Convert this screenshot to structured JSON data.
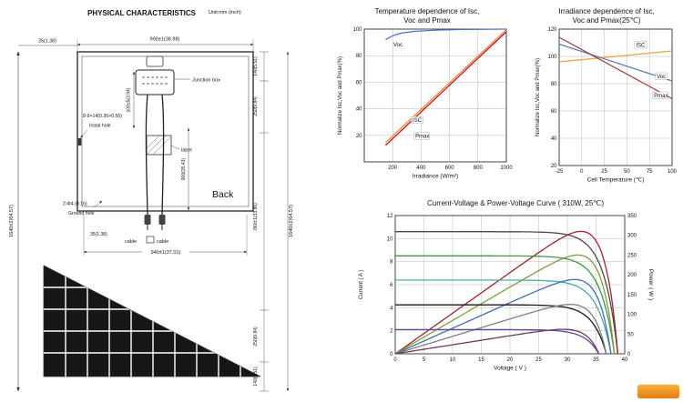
{
  "page": {
    "bg": "#ffffff"
  },
  "drawing": {
    "title": "PHYSICAL CHARACTERISTICS",
    "unit_label": "Unit:mm (inch)",
    "dims": {
      "top_width": "990±1(38.98)",
      "top_left_offset": "35(1.38)",
      "top_right": "140(5.51)",
      "left_height": "1640±2(64.57)",
      "right_height": "1640±2(64.57)",
      "right_upper": "250(9.84)",
      "right_mid": "860±1(33.86)",
      "jbox": "100±5(3.94)",
      "label_pos": "900(35.43)",
      "bottom_offset": "35(1.38)",
      "bottom_width": "940±1(37.01)",
      "wedge_upper": "250(9.84)",
      "wedge_lower": "140(5.51)"
    },
    "notes": {
      "junction_box": "Junction box",
      "instal_hole_size": "8-9×14(0.35×0.55)",
      "instal_hole": "Instal hole",
      "label": "label",
      "back": "Back",
      "ground_hole_size": "2-Φ4 (0.16)",
      "ground_hole": "Ground hole",
      "cable_left": "cable",
      "cable_right": "cable"
    }
  },
  "chart_data": [
    {
      "type": "line",
      "title_line1": "Temperature dependence of Isc,",
      "title_line2": "Voc and Pmax",
      "xlabel": "Irradiance (W/m²)",
      "ylabel": "Normalize Isc,Voc and Pmax(%)",
      "xlim": [
        0,
        1000
      ],
      "ylim": [
        0,
        100
      ],
      "xticks": [
        200,
        400,
        600,
        800,
        1000
      ],
      "yticks": [
        20,
        40,
        60,
        80,
        100
      ],
      "grid": true,
      "series": [
        {
          "name": "Voc",
          "color": "#4472c4",
          "points": [
            [
              150,
              92
            ],
            [
              200,
              95
            ],
            [
              260,
              97
            ],
            [
              350,
              98.3
            ],
            [
              500,
              99.2
            ],
            [
              700,
              99.7
            ],
            [
              1000,
              100
            ]
          ]
        },
        {
          "name": "ISC",
          "color": "#ed7d31",
          "points": [
            [
              150,
              14.5
            ],
            [
              1000,
              99.5
            ]
          ]
        },
        {
          "name": "Pmax",
          "color": "#c00000",
          "points": [
            [
              150,
              12.5
            ],
            [
              1000,
              98
            ]
          ]
        }
      ],
      "annotations": [
        {
          "text": "Voc",
          "x": 205,
          "y": 87,
          "box": false
        },
        {
          "text": "ISC",
          "x": 340,
          "y": 30,
          "box": true
        },
        {
          "text": "Pmax",
          "x": 360,
          "y": 18,
          "box": true
        }
      ]
    },
    {
      "type": "line",
      "title_line1": "Irradiance dependence of Isc,",
      "title_line2": "Voc and Pmax(25℃)",
      "xlabel": "Cell Temperature (℃)",
      "ylabel": "Normalize Isc,Voc and Pmax(%)",
      "xlim": [
        -25,
        100
      ],
      "ylim": [
        20,
        120
      ],
      "xticks": [
        -25,
        0,
        25,
        50,
        75,
        100
      ],
      "yticks": [
        20,
        40,
        60,
        80,
        100,
        120
      ],
      "grid": true,
      "series": [
        {
          "name": "ISC",
          "color": "#e6a23c",
          "points": [
            [
              -25,
              96
            ],
            [
              100,
              104
            ]
          ]
        },
        {
          "name": "Voc",
          "color": "#5b7bb4",
          "points": [
            [
              -25,
              109
            ],
            [
              100,
              82
            ]
          ]
        },
        {
          "name": "Pmax",
          "color": "#9e3a3a",
          "points": [
            [
              -25,
              114
            ],
            [
              100,
              69
            ]
          ]
        }
      ],
      "annotations": [
        {
          "text": "ISC",
          "x": 60,
          "y": 107,
          "box": true
        },
        {
          "text": "Voc",
          "x": 83,
          "y": 84,
          "box": true
        },
        {
          "text": "Pmax",
          "x": 80,
          "y": 70,
          "box": true
        }
      ]
    },
    {
      "type": "line",
      "title": "Current-Voltage & Power-Voltage Curve ( 310W, 25℃)",
      "xlabel": "Voltage ( V )",
      "ylabel_left": "Current ( A )",
      "ylabel_right": "Power ( W )",
      "xlim": [
        0,
        40
      ],
      "xticks": [
        0,
        5,
        10,
        15,
        20,
        25,
        30,
        35,
        40
      ],
      "ylim_left": [
        0,
        12
      ],
      "yticks_left": [
        0,
        2,
        4,
        6,
        8,
        10,
        12
      ],
      "ylim_right": [
        0,
        350
      ],
      "yticks_right": [
        0,
        50,
        100,
        150,
        200,
        250,
        300,
        350
      ],
      "grid": true,
      "curves": [
        {
          "isc": 10.6,
          "voc": 38.8,
          "pmax": 310,
          "iv_color": "#4a4a4a",
          "pv_color": "#a02428"
        },
        {
          "isc": 8.5,
          "voc": 38.2,
          "pmax": 250,
          "iv_color": "#3d9a3d",
          "pv_color": "#7f9e3c"
        },
        {
          "isc": 6.4,
          "voc": 37.6,
          "pmax": 188,
          "iv_color": "#45b0a0",
          "pv_color": "#3f6fb5"
        },
        {
          "isc": 4.25,
          "voc": 36.8,
          "pmax": 125,
          "iv_color": "#1a1a1a",
          "pv_color": "#808080"
        },
        {
          "isc": 2.1,
          "voc": 35.5,
          "pmax": 62,
          "iv_color": "#5b4a9e",
          "pv_color": "#6e3a5e"
        }
      ]
    }
  ],
  "logo": {
    "color_top": "#f9b233",
    "color_bottom": "#e07c1a"
  }
}
